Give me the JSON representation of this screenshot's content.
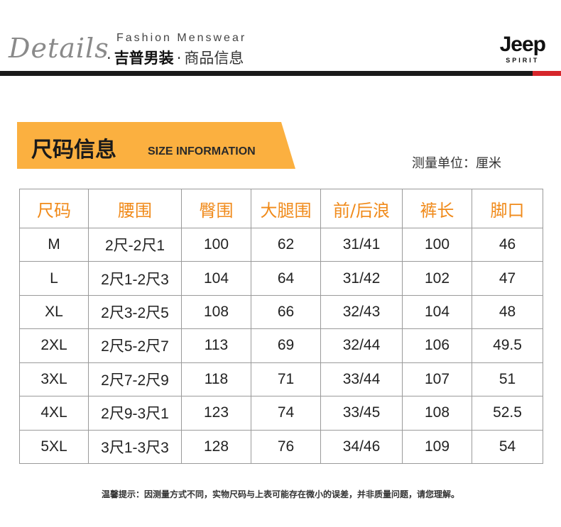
{
  "header": {
    "details": "Details",
    "fashion": "Fashion Menswear",
    "brand_cn": "吉普男装",
    "separator": "·",
    "product_info": "商品信息",
    "logo_main": "Jeep",
    "logo_sub": "SPIRIT"
  },
  "banner": {
    "title": "尺码信息",
    "subtitle": "SIZE INFORMATION",
    "accent_color": "#fbb040",
    "unit": "测量单位：厘米"
  },
  "table": {
    "headers": [
      "尺码",
      "腰围",
      "臀围",
      "大腿围",
      "前/后浪",
      "裤长",
      "脚口"
    ],
    "rows": [
      [
        "M",
        "2尺-2尺1",
        "100",
        "62",
        "31/41",
        "100",
        "46"
      ],
      [
        "L",
        "2尺1-2尺3",
        "104",
        "64",
        "31/42",
        "102",
        "47"
      ],
      [
        "XL",
        "2尺3-2尺5",
        "108",
        "66",
        "32/43",
        "104",
        "48"
      ],
      [
        "2XL",
        "2尺5-2尺7",
        "113",
        "69",
        "32/44",
        "106",
        "49.5"
      ],
      [
        "3XL",
        "2尺7-2尺9",
        "118",
        "71",
        "33/44",
        "107",
        "51"
      ],
      [
        "4XL",
        "2尺9-3尺1",
        "123",
        "74",
        "33/45",
        "108",
        "52.5"
      ],
      [
        "5XL",
        "3尺1-3尺3",
        "128",
        "76",
        "34/46",
        "109",
        "54"
      ]
    ]
  },
  "note": "温馨提示：因测量方式不同，实物尺码与上表可能存在微小的误差，并非质量问题，请您理解。"
}
